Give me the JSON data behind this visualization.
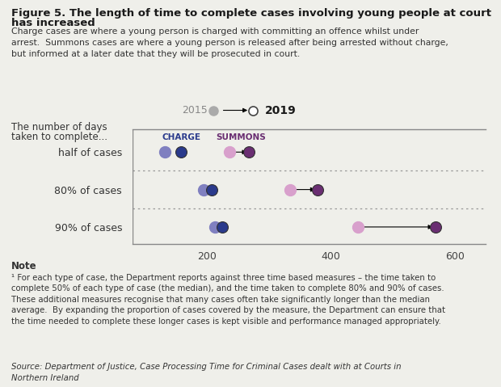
{
  "title_line1": "Figure 5. The length of time to complete cases involving young people at court",
  "title_line2": "has increased",
  "subtitle": "Charge cases are where a young person is charged with committing an offence whilst under\narrest.  Summons cases are where a young person is released after being arrested without charge,\nbut informed at a later date that they will be prosecuted in court.",
  "legend_label_2015": "2015",
  "legend_label_2019": "2019",
  "y_axis_label_line1": "The number of days",
  "y_axis_label_line2": "taken to complete...",
  "row_labels": [
    "half of cases",
    "80% of cases",
    "90% of cases"
  ],
  "x_ticks": [
    200,
    400,
    600
  ],
  "xlim": [
    80,
    650
  ],
  "charge_label": "CHARGE",
  "summons_label": "SUMMONS",
  "charge_color_2015": "#8080c0",
  "charge_color_2019": "#2a3a8c",
  "summons_color_2015": "#d8a0cc",
  "summons_color_2019": "#6a2e72",
  "legend_dot_2015": "#aaaaaa",
  "legend_dot_2019": "#555555",
  "charge_2015": [
    132,
    194,
    212
  ],
  "charge_2019": [
    158,
    208,
    224
  ],
  "summons_2015": [
    236,
    334,
    444
  ],
  "summons_2019": [
    268,
    378,
    568
  ],
  "note_title": "Note",
  "note_text": "¹ For each type of case, the Department reports against three time based measures – the time taken to\ncomplete 50% of each type of case (the median), and the time taken to complete 80% and 90% of cases.\nThese additional measures recognise that many cases often take significantly longer than the median\naverage.  By expanding the proportion of cases covered by the measure, the Department can ensure that\nthe time needed to complete these longer cases is kept visible and performance managed appropriately.",
  "source_text": "Source: Department of Justice, Case Processing Time for Criminal Cases dealt with at Courts in\nNorthern Ireland",
  "bg_color": "#efefea",
  "marker_size": 10
}
